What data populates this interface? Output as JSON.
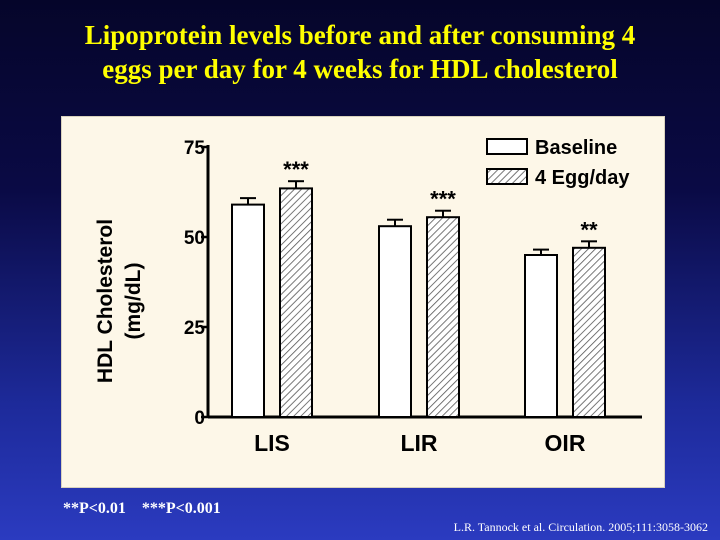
{
  "slide": {
    "title_line1": "Lipoprotein levels before and after consuming 4",
    "title_line2": "eggs per day for 4 weeks for HDL cholesterol",
    "footnote": "**P<0.01    ***P<0.001",
    "citation": "L.R.  Tannock et al. Circulation. 2005;111:3058-3062"
  },
  "colors": {
    "title": "#ffff00",
    "panel": "#fdf7e8",
    "ink": "#000000"
  },
  "chart_data": {
    "type": "bar",
    "ylabel_line1": "HDL Cholesterol",
    "ylabel_line2": "(mg/dL)",
    "categories": [
      "LIS",
      "LIR",
      "OIR"
    ],
    "ylim": [
      0,
      75
    ],
    "yticks": [
      0,
      25,
      50,
      75
    ],
    "ytick_labels": [
      "0",
      "25",
      "50",
      "75"
    ],
    "series": [
      {
        "name": "Baseline",
        "values": [
          59,
          53,
          45
        ],
        "errors": [
          1.8,
          1.8,
          1.5
        ],
        "fill": "open"
      },
      {
        "name": "4 Egg/day",
        "values": [
          63.5,
          55.5,
          47
        ],
        "errors": [
          2.0,
          1.8,
          1.8
        ],
        "fill": "hatched"
      }
    ],
    "significance": [
      "***",
      "***",
      "**"
    ],
    "legend_position": "top-right"
  }
}
